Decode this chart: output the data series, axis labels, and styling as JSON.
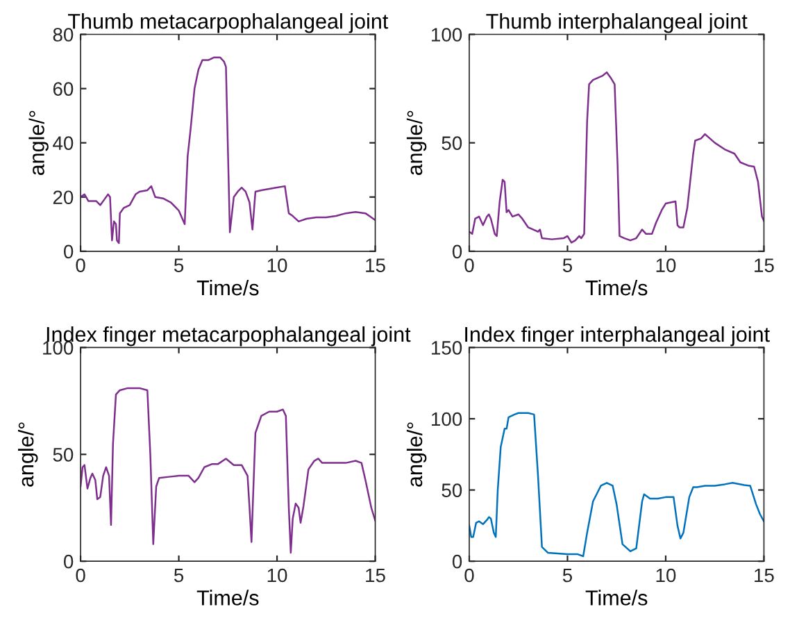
{
  "chart_data": [
    {
      "type": "line",
      "title": "Thumb metacarpophalangeal joint",
      "xlabel": "Time/s",
      "ylabel": "angle/°",
      "xlim": [
        0,
        15
      ],
      "ylim": [
        0,
        80
      ],
      "xticks": [
        0,
        5,
        10,
        15
      ],
      "yticks": [
        0,
        20,
        40,
        60,
        80
      ],
      "series": [
        {
          "color": "#7e2f8e",
          "x": [
            0,
            0.2,
            0.4,
            0.8,
            1.0,
            1.2,
            1.4,
            1.5,
            1.6,
            1.7,
            1.8,
            1.85,
            1.95,
            2.0,
            2.2,
            2.5,
            2.8,
            3.0,
            3.4,
            3.6,
            3.8,
            4.2,
            4.6,
            5.0,
            5.3,
            5.45,
            5.6,
            5.8,
            6.0,
            6.2,
            6.5,
            6.8,
            7.1,
            7.3,
            7.4,
            7.6,
            7.8,
            8.0,
            8.2,
            8.4,
            8.6,
            8.75,
            8.9,
            9.2,
            9.6,
            10.0,
            10.4,
            10.6,
            10.8,
            11.1,
            11.5,
            12.0,
            12.5,
            13.0,
            13.5,
            14.0,
            14.5,
            14.7,
            15
          ],
          "values": [
            20,
            21,
            18.5,
            18.5,
            17,
            19,
            21,
            20,
            4,
            11,
            10,
            4,
            3,
            14,
            16,
            17,
            21,
            22,
            22.5,
            24,
            20,
            19.5,
            18,
            15,
            10,
            35,
            45,
            60,
            67,
            70.5,
            70.5,
            71.5,
            71.5,
            70,
            68,
            7,
            20,
            22,
            23.5,
            22,
            18,
            8,
            22,
            22.5,
            23,
            23.5,
            24,
            14,
            13,
            11,
            12,
            12.5,
            12.5,
            13,
            14,
            14.5,
            14,
            13,
            11.5
          ]
        }
      ]
    },
    {
      "type": "line",
      "title": "Thumb interphalangeal joint",
      "xlabel": "Time/s",
      "ylabel": "angle/°",
      "xlim": [
        0,
        15
      ],
      "ylim": [
        0,
        100
      ],
      "xticks": [
        0,
        5,
        10,
        15
      ],
      "yticks": [
        0,
        50,
        100
      ],
      "series": [
        {
          "color": "#7e2f8e",
          "x": [
            0,
            0.15,
            0.3,
            0.5,
            0.7,
            0.9,
            1.0,
            1.1,
            1.3,
            1.4,
            1.55,
            1.7,
            1.8,
            1.9,
            2.0,
            2.2,
            2.5,
            2.7,
            3.0,
            3.5,
            3.6,
            3.7,
            4.2,
            4.8,
            5.0,
            5.2,
            5.4,
            5.6,
            5.7,
            5.85,
            6.0,
            6.1,
            6.3,
            6.8,
            7.0,
            7.2,
            7.4,
            7.55,
            7.65,
            7.9,
            8.2,
            8.5,
            8.8,
            9.0,
            9.3,
            9.5,
            9.8,
            10.0,
            10.5,
            10.6,
            10.7,
            10.9,
            11.1,
            11.4,
            11.5,
            11.8,
            12.0,
            12.5,
            13.0,
            13.5,
            13.8,
            14.2,
            14.5,
            14.7,
            14.9,
            15
          ],
          "values": [
            9,
            8,
            15,
            16,
            12,
            16,
            17,
            15,
            8,
            7,
            23,
            33,
            32,
            18,
            19,
            16,
            17,
            15,
            11,
            9,
            10,
            6,
            5.5,
            6,
            7,
            4,
            5,
            7,
            6,
            8,
            60,
            77,
            79,
            81,
            82.5,
            80,
            77,
            40,
            7,
            6,
            5,
            6,
            10,
            8,
            8,
            13,
            19,
            22,
            23,
            12,
            11,
            11,
            20,
            45,
            51,
            52,
            54,
            50,
            47,
            45,
            41,
            39.5,
            39,
            32,
            16,
            14
          ]
        }
      ]
    },
    {
      "type": "line",
      "title": "Index finger metacarpophalangeal joint",
      "xlabel": "Time/s",
      "ylabel": "angle/°",
      "xlim": [
        0,
        15
      ],
      "ylim": [
        0,
        100
      ],
      "xticks": [
        0,
        5,
        10,
        15
      ],
      "yticks": [
        0,
        50,
        100
      ],
      "series": [
        {
          "color": "#7e2f8e",
          "x": [
            0,
            0.1,
            0.2,
            0.35,
            0.5,
            0.6,
            0.75,
            0.85,
            1.0,
            1.15,
            1.3,
            1.45,
            1.55,
            1.65,
            1.8,
            2.0,
            2.4,
            3.0,
            3.4,
            3.55,
            3.7,
            3.85,
            4.0,
            4.5,
            5.0,
            5.5,
            5.8,
            6.0,
            6.3,
            6.7,
            7.0,
            7.4,
            7.8,
            8.2,
            8.5,
            8.6,
            8.7,
            8.8,
            8.9,
            9.2,
            9.6,
            10.0,
            10.3,
            10.45,
            10.6,
            10.7,
            10.8,
            10.95,
            11.1,
            11.2,
            11.35,
            11.6,
            11.9,
            12.1,
            12.3,
            13.0,
            13.5,
            14.0,
            14.3,
            14.5,
            14.8,
            15
          ],
          "values": [
            35,
            44,
            45,
            34,
            39,
            41,
            38,
            29,
            30,
            40,
            44,
            40,
            17,
            55,
            78,
            80,
            81,
            81,
            80,
            50,
            8,
            35,
            39,
            39.5,
            40,
            40,
            37,
            39,
            44,
            45.5,
            45.5,
            48,
            45,
            45,
            40,
            25,
            9,
            35,
            60,
            68,
            70,
            70,
            71,
            68,
            25,
            4,
            20,
            27,
            25,
            18,
            26,
            43,
            47,
            48,
            46,
            46,
            46,
            47,
            46,
            38,
            25,
            19
          ]
        }
      ]
    },
    {
      "type": "line",
      "title": "Index finger interphalangeal joint",
      "xlabel": "Time/s",
      "ylabel": "angle/°",
      "xlim": [
        0,
        15
      ],
      "ylim": [
        0,
        150
      ],
      "xticks": [
        0,
        5,
        10,
        15
      ],
      "yticks": [
        0,
        50,
        100,
        150
      ],
      "series": [
        {
          "color": "#0072bd",
          "x": [
            0,
            0.1,
            0.2,
            0.35,
            0.5,
            0.7,
            0.9,
            1.0,
            1.1,
            1.25,
            1.35,
            1.45,
            1.6,
            1.8,
            1.9,
            2.0,
            2.3,
            2.5,
            3.0,
            3.3,
            3.5,
            3.7,
            4.0,
            4.5,
            5.0,
            5.5,
            5.8,
            6.0,
            6.3,
            6.7,
            7.0,
            7.3,
            7.5,
            7.8,
            8.2,
            8.5,
            8.8,
            8.9,
            9.2,
            9.6,
            10.0,
            10.4,
            10.6,
            10.75,
            10.9,
            11.2,
            11.4,
            11.6,
            12.0,
            12.5,
            13.0,
            13.4,
            14.0,
            14.3,
            14.6,
            14.8,
            15
          ],
          "values": [
            25,
            17,
            17,
            27,
            28,
            26,
            29,
            31,
            30,
            20,
            17,
            50,
            80,
            93,
            93,
            101,
            103,
            104,
            104,
            103,
            60,
            10,
            6,
            5.5,
            5,
            5,
            3.5,
            20,
            42,
            53,
            55,
            53,
            40,
            12,
            7,
            9,
            42,
            47,
            44,
            44,
            45,
            45,
            25,
            16,
            20,
            45,
            52,
            52,
            53,
            53,
            54,
            55,
            53.5,
            53,
            40,
            33,
            28
          ]
        }
      ]
    }
  ]
}
